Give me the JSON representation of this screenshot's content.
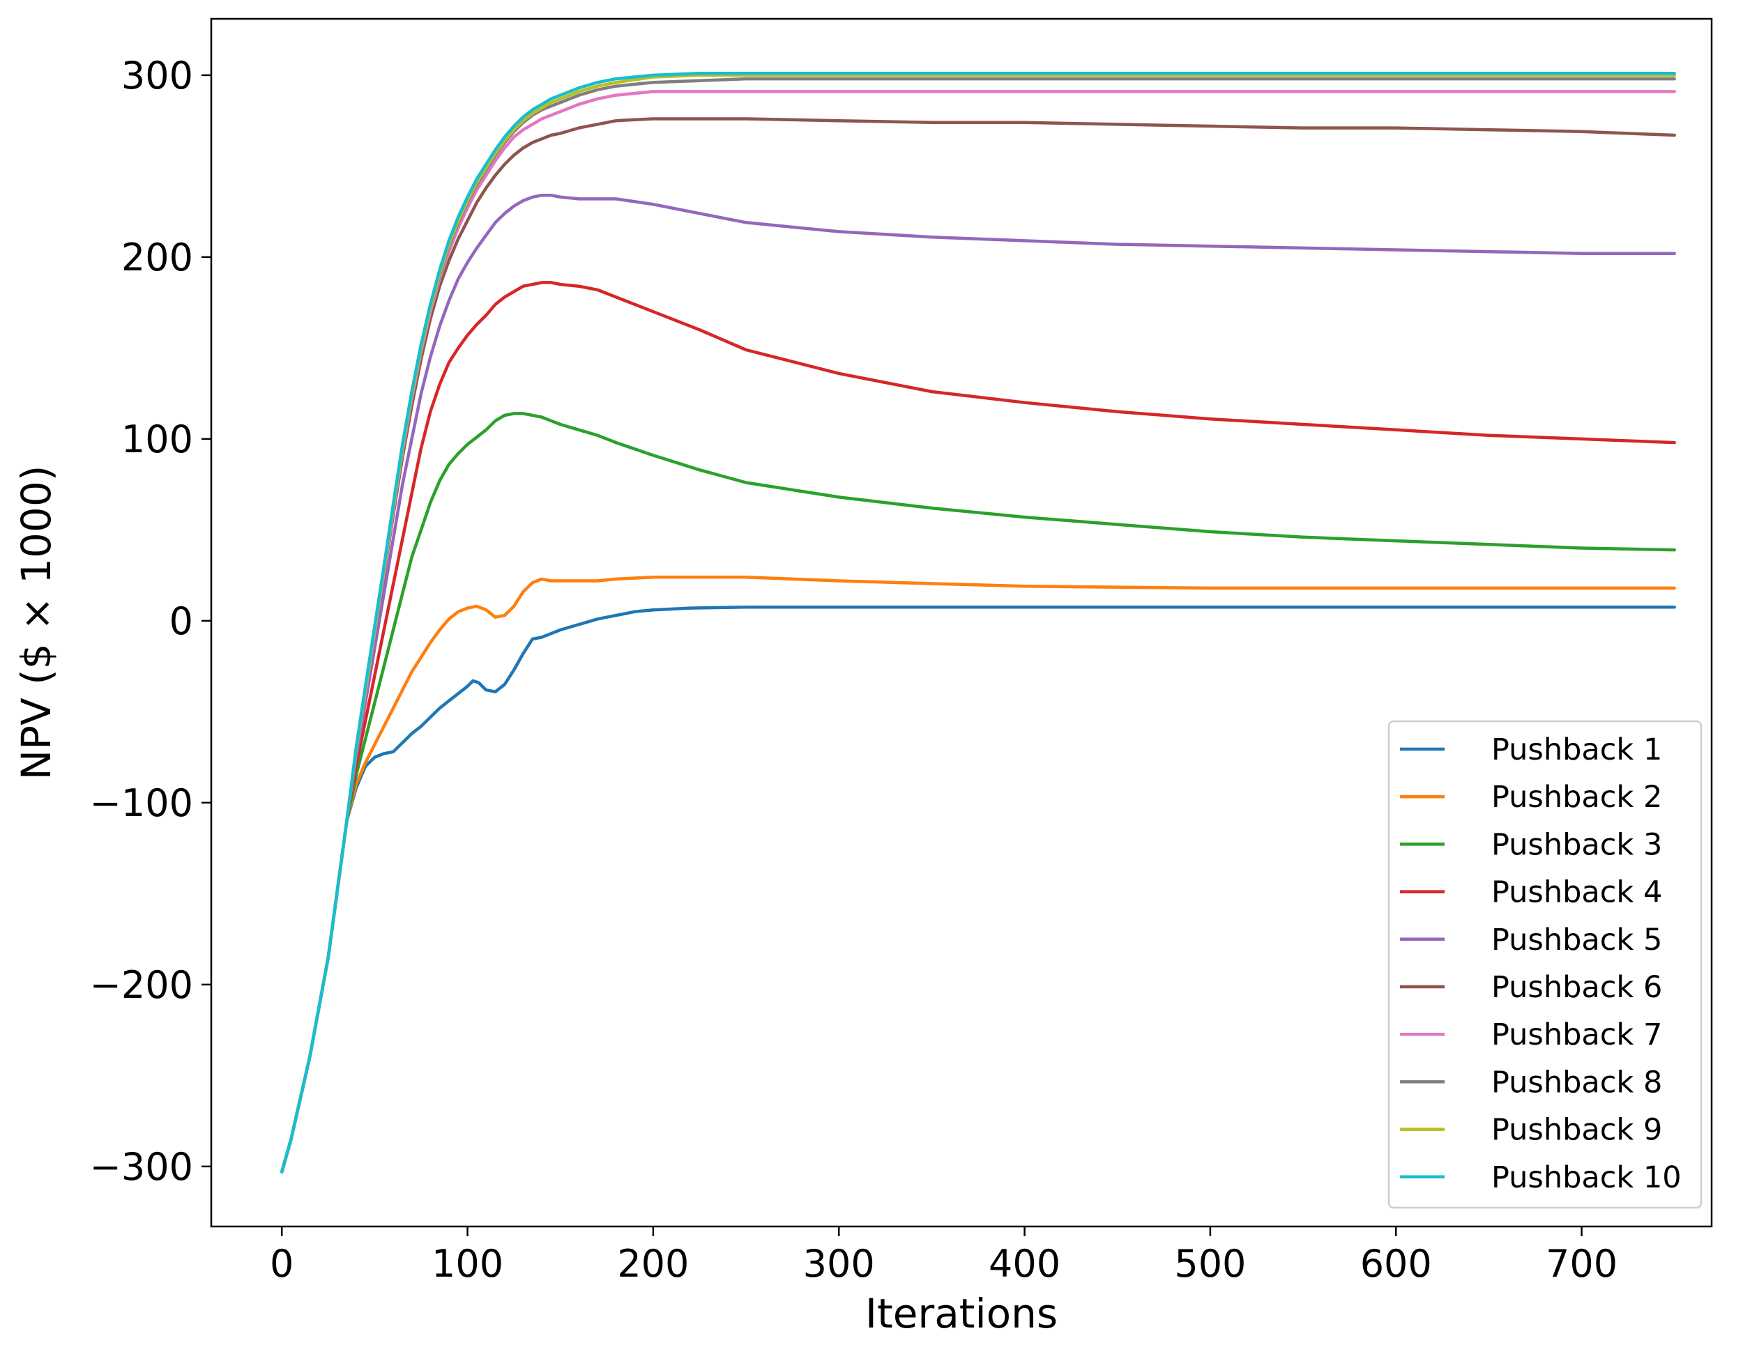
{
  "chart_data": {
    "type": "line",
    "xlabel": "Iterations",
    "ylabel": "NPV ($ × 1000)",
    "xlim": [
      -38,
      770
    ],
    "ylim": [
      -333,
      331
    ],
    "xticks": [
      0,
      100,
      200,
      300,
      400,
      500,
      600,
      700
    ],
    "xtick_labels": [
      "0",
      "100",
      "200",
      "300",
      "400",
      "500",
      "600",
      "700"
    ],
    "yticks": [
      -300,
      -200,
      -100,
      0,
      100,
      200,
      300
    ],
    "ytick_labels": [
      "−300",
      "−200",
      "−100",
      "0",
      "100",
      "200",
      "300"
    ],
    "grid": false,
    "legend_position": "bottom-right",
    "series": [
      {
        "name": "Pushback 1",
        "color": "#1f77b4",
        "x": [
          0,
          5,
          15,
          25,
          35,
          40,
          45,
          50,
          55,
          60,
          65,
          70,
          75,
          80,
          85,
          90,
          95,
          100,
          103,
          106,
          110,
          115,
          120,
          125,
          130,
          135,
          140,
          145,
          150,
          160,
          170,
          180,
          190,
          200,
          220,
          250,
          300,
          400,
          500,
          600,
          700,
          750
        ],
        "y": [
          -303,
          -285,
          -240,
          -185,
          -110,
          -92,
          -80,
          -75,
          -73,
          -72,
          -67,
          -62,
          -58,
          -53,
          -48,
          -44,
          -40,
          -36,
          -33,
          -34,
          -38,
          -39,
          -35,
          -27,
          -18,
          -10,
          -9,
          -7,
          -5,
          -2,
          1,
          3,
          5,
          6,
          7,
          7.5,
          7.5,
          7.5,
          7.5,
          7.5,
          7.5,
          7.5
        ]
      },
      {
        "name": "Pushback 2",
        "color": "#ff7f0e",
        "x": [
          0,
          5,
          15,
          25,
          35,
          40,
          45,
          50,
          55,
          60,
          65,
          70,
          75,
          80,
          85,
          90,
          95,
          100,
          105,
          110,
          115,
          120,
          125,
          130,
          135,
          140,
          145,
          150,
          160,
          170,
          180,
          200,
          220,
          250,
          300,
          400,
          500,
          600,
          700,
          750
        ],
        "y": [
          -303,
          -285,
          -240,
          -185,
          -110,
          -90,
          -78,
          -68,
          -58,
          -48,
          -38,
          -28,
          -20,
          -12,
          -5,
          1,
          5,
          7,
          8,
          6,
          2,
          3,
          8,
          16,
          21,
          23,
          22,
          22,
          22,
          22,
          23,
          24,
          24,
          24,
          22,
          19,
          18,
          18,
          18,
          18
        ]
      },
      {
        "name": "Pushback 3",
        "color": "#2ca02c",
        "x": [
          0,
          5,
          15,
          25,
          35,
          40,
          45,
          50,
          55,
          60,
          65,
          70,
          75,
          80,
          85,
          90,
          95,
          100,
          105,
          110,
          115,
          120,
          125,
          130,
          135,
          140,
          145,
          150,
          160,
          170,
          180,
          200,
          225,
          250,
          300,
          350,
          400,
          450,
          500,
          550,
          600,
          650,
          700,
          750
        ],
        "y": [
          -303,
          -285,
          -240,
          -185,
          -110,
          -85,
          -65,
          -45,
          -25,
          -5,
          15,
          35,
          50,
          65,
          77,
          86,
          92,
          97,
          101,
          105,
          110,
          113,
          114,
          114,
          113,
          112,
          110,
          108,
          105,
          102,
          98,
          91,
          83,
          76,
          68,
          62,
          57,
          53,
          49,
          46,
          44,
          42,
          40,
          39
        ]
      },
      {
        "name": "Pushback 4",
        "color": "#d62728",
        "x": [
          0,
          5,
          15,
          25,
          35,
          40,
          45,
          50,
          55,
          60,
          65,
          70,
          75,
          80,
          85,
          90,
          95,
          100,
          105,
          110,
          115,
          120,
          125,
          130,
          135,
          140,
          145,
          150,
          160,
          170,
          180,
          200,
          225,
          250,
          300,
          350,
          400,
          450,
          500,
          550,
          600,
          650,
          700,
          750
        ],
        "y": [
          -303,
          -285,
          -240,
          -185,
          -110,
          -80,
          -55,
          -30,
          -5,
          20,
          45,
          70,
          95,
          115,
          130,
          142,
          150,
          157,
          163,
          168,
          174,
          178,
          181,
          184,
          185,
          186,
          186,
          185,
          184,
          182,
          178,
          170,
          160,
          149,
          136,
          126,
          120,
          115,
          111,
          108,
          105,
          102,
          100,
          98
        ]
      },
      {
        "name": "Pushback 5",
        "color": "#9467bd",
        "x": [
          0,
          5,
          15,
          25,
          35,
          40,
          45,
          50,
          55,
          60,
          65,
          70,
          75,
          80,
          85,
          90,
          95,
          100,
          105,
          110,
          115,
          120,
          125,
          130,
          135,
          140,
          145,
          150,
          160,
          170,
          180,
          200,
          225,
          250,
          300,
          350,
          400,
          450,
          500,
          550,
          600,
          650,
          700,
          750
        ],
        "y": [
          -303,
          -285,
          -240,
          -185,
          -110,
          -75,
          -45,
          -15,
          15,
          45,
          75,
          100,
          125,
          145,
          162,
          176,
          188,
          197,
          205,
          212,
          219,
          224,
          228,
          231,
          233,
          234,
          234,
          233,
          232,
          232,
          232,
          229,
          224,
          219,
          214,
          211,
          209,
          207,
          206,
          205,
          204,
          203,
          202,
          202
        ]
      },
      {
        "name": "Pushback 6",
        "color": "#8c564b",
        "x": [
          0,
          5,
          15,
          25,
          35,
          40,
          45,
          50,
          55,
          60,
          65,
          70,
          75,
          80,
          85,
          90,
          95,
          100,
          105,
          110,
          115,
          120,
          125,
          130,
          135,
          140,
          145,
          150,
          160,
          170,
          180,
          200,
          225,
          250,
          300,
          350,
          400,
          450,
          500,
          550,
          600,
          650,
          700,
          750
        ],
        "y": [
          -303,
          -285,
          -240,
          -185,
          -110,
          -72,
          -40,
          -8,
          25,
          58,
          90,
          118,
          144,
          166,
          184,
          198,
          210,
          220,
          230,
          238,
          245,
          251,
          256,
          260,
          263,
          265,
          267,
          268,
          271,
          273,
          275,
          276,
          276,
          276,
          275,
          274,
          274,
          273,
          272,
          271,
          271,
          270,
          269,
          267
        ]
      },
      {
        "name": "Pushback 7",
        "color": "#e377c2",
        "x": [
          0,
          5,
          15,
          25,
          35,
          40,
          45,
          50,
          55,
          60,
          65,
          70,
          75,
          80,
          85,
          90,
          95,
          100,
          105,
          110,
          115,
          120,
          125,
          130,
          135,
          140,
          145,
          150,
          160,
          170,
          180,
          200,
          225,
          250,
          300,
          400,
          500,
          600,
          700,
          750
        ],
        "y": [
          -303,
          -285,
          -240,
          -185,
          -110,
          -72,
          -40,
          -7,
          26,
          60,
          93,
          122,
          148,
          170,
          188,
          203,
          216,
          227,
          237,
          245,
          253,
          260,
          266,
          270,
          273,
          276,
          278,
          280,
          284,
          287,
          289,
          291,
          291,
          291,
          291,
          291,
          291,
          291,
          291,
          291
        ]
      },
      {
        "name": "Pushback 8",
        "color": "#7f7f7f",
        "x": [
          0,
          5,
          15,
          25,
          35,
          40,
          45,
          50,
          55,
          60,
          65,
          70,
          75,
          80,
          85,
          90,
          95,
          100,
          105,
          110,
          115,
          120,
          125,
          130,
          135,
          140,
          145,
          150,
          160,
          170,
          180,
          200,
          225,
          250,
          300,
          400,
          500,
          600,
          700,
          750
        ],
        "y": [
          -303,
          -285,
          -240,
          -185,
          -110,
          -71,
          -38,
          -5,
          28,
          62,
          95,
          124,
          150,
          172,
          190,
          206,
          219,
          230,
          240,
          248,
          256,
          263,
          269,
          274,
          278,
          281,
          283,
          285,
          289,
          292,
          294,
          296,
          297,
          298,
          298,
          298,
          298,
          298,
          298,
          298
        ]
      },
      {
        "name": "Pushback 9",
        "color": "#bcbd22",
        "x": [
          0,
          5,
          15,
          25,
          35,
          40,
          45,
          50,
          55,
          60,
          65,
          70,
          75,
          80,
          85,
          90,
          95,
          100,
          105,
          110,
          115,
          120,
          125,
          130,
          135,
          140,
          145,
          150,
          160,
          170,
          180,
          200,
          225,
          250,
          300,
          400,
          500,
          600,
          700,
          750
        ],
        "y": [
          -303,
          -285,
          -240,
          -185,
          -110,
          -71,
          -38,
          -5,
          28,
          62,
          95,
          124,
          150,
          172,
          191,
          207,
          220,
          231,
          241,
          249,
          257,
          264,
          270,
          275,
          279,
          282,
          285,
          287,
          291,
          294,
          296,
          299,
          300,
          300,
          300,
          300,
          300,
          300,
          300,
          300
        ]
      },
      {
        "name": "Pushback 10",
        "color": "#17becf",
        "x": [
          0,
          5,
          15,
          25,
          35,
          40,
          45,
          50,
          55,
          60,
          65,
          70,
          75,
          80,
          85,
          90,
          95,
          100,
          105,
          110,
          115,
          120,
          125,
          130,
          135,
          140,
          145,
          150,
          160,
          170,
          180,
          200,
          225,
          250,
          300,
          400,
          500,
          600,
          700,
          750
        ],
        "y": [
          -303,
          -285,
          -240,
          -185,
          -110,
          -70,
          -36,
          -3,
          30,
          64,
          97,
          126,
          152,
          174,
          193,
          209,
          222,
          233,
          243,
          251,
          259,
          266,
          272,
          277,
          281,
          284,
          287,
          289,
          293,
          296,
          298,
          300,
          301,
          301,
          301,
          301,
          301,
          301,
          301,
          301
        ]
      }
    ]
  }
}
